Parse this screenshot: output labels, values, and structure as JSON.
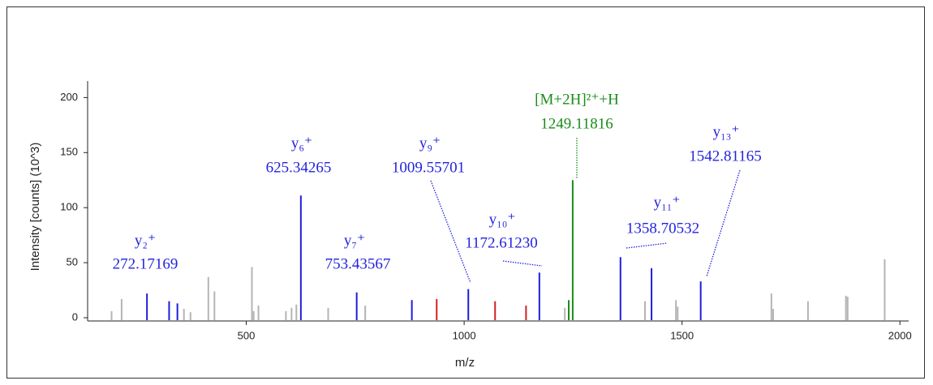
{
  "chart_data": {
    "type": "spectrum",
    "xlabel": "m/z",
    "ylabel": "Intensity [counts] (10^3)",
    "xlim": [
      136,
      2020
    ],
    "ylim": [
      0,
      215
    ],
    "xticks": [
      500,
      1000,
      1500,
      2000
    ],
    "yticks": [
      0,
      50,
      100,
      150,
      200
    ],
    "series": [
      {
        "color": "#b4b4b4",
        "x": [
          191,
          214,
          357,
          372,
          413,
          427,
          513,
          517,
          528,
          591,
          604,
          615,
          688,
          773,
          1231,
          1415,
          1486,
          1490,
          1705,
          1709,
          1789,
          1876,
          1880,
          1965
        ],
        "values": [
          6,
          17,
          8,
          5,
          37,
          24,
          46,
          6,
          11,
          6,
          9,
          12,
          9,
          11,
          9,
          15,
          16,
          10,
          22,
          8,
          15,
          20,
          19,
          53
        ]
      },
      {
        "color": "#1e1edc",
        "x": [
          272.17169,
          323,
          342,
          625.34265,
          753.43567,
          880,
          1009.55701,
          1172.6123,
          1358.70532,
          1430,
          1542.81165
        ],
        "values": [
          22,
          15,
          13,
          111,
          23,
          16,
          26,
          41,
          55,
          45,
          33
        ]
      },
      {
        "color": "#d42020",
        "x": [
          937,
          1071,
          1142
        ],
        "values": [
          17,
          15,
          11
        ]
      },
      {
        "color": "#1a8c1a",
        "x": [
          1240,
          1249.11816
        ],
        "values": [
          16,
          125
        ]
      }
    ],
    "annotations": [
      {
        "ion": "y₂⁺",
        "mz": 272.17169,
        "color": "#2323dd"
      },
      {
        "ion": "y₆⁺",
        "mz": 625.34265,
        "color": "#2323dd"
      },
      {
        "ion": "y₇⁺",
        "mz": 753.43567,
        "color": "#2323dd"
      },
      {
        "ion": "y₉⁺",
        "mz": 1009.55701,
        "color": "#2323dd"
      },
      {
        "ion": "y₁₀⁺",
        "mz": {
          "value": 1172.6123,
          "label": "1172.61230"
        },
        "color": "#2323dd"
      },
      {
        "ion": "[M+2H]²⁺+H",
        "mz": 1249.11816,
        "color": "#1a8c1a"
      },
      {
        "ion": "y₁₁⁺",
        "mz": 1358.70532,
        "color": "#2323dd"
      },
      {
        "ion": "y₁₃⁺",
        "mz": 1542.81165,
        "color": "#2323dd"
      }
    ]
  }
}
